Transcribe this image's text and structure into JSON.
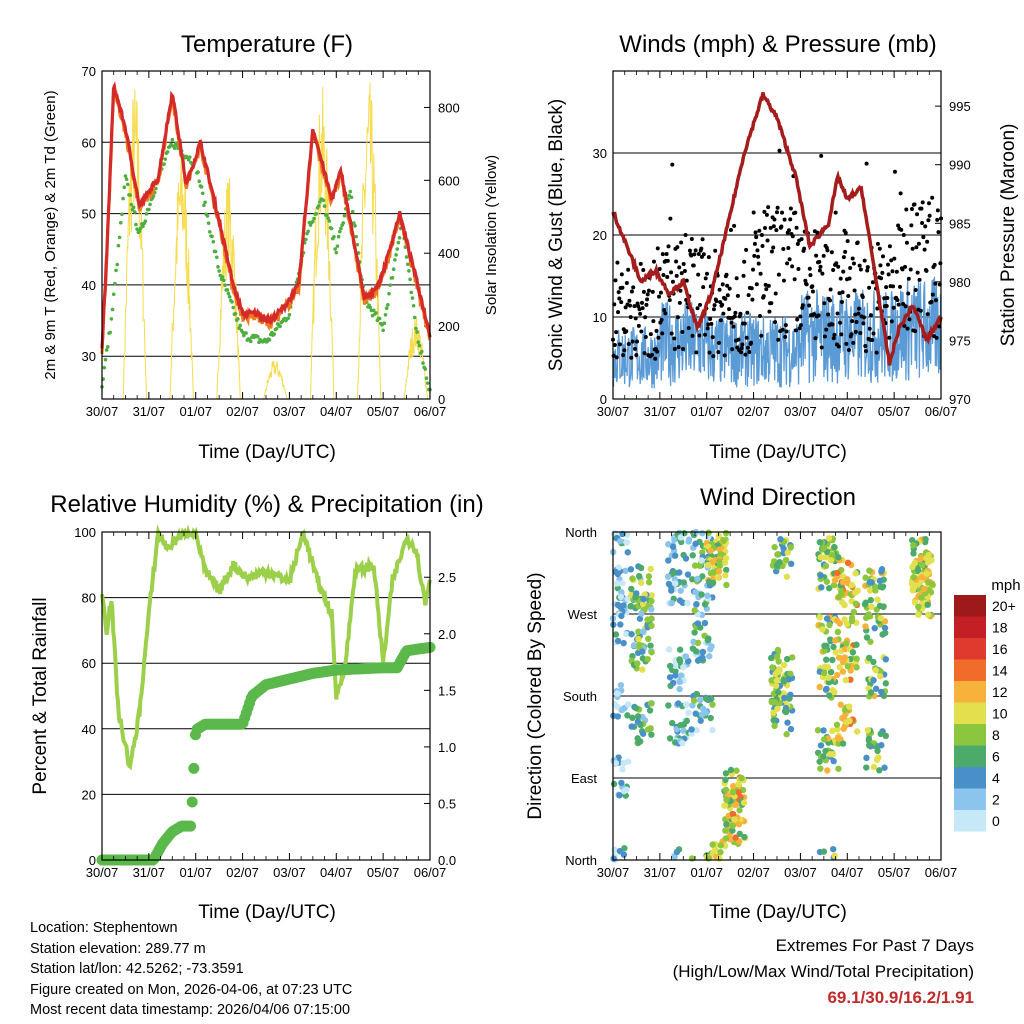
{
  "panels": {
    "temperature": {
      "title": "Temperature (F)",
      "ylabel_left": "2m & 9m T (Red, Orange) & 2m Td (Green)",
      "ylabel_right": "Solar Insolation (Yellow)",
      "xlabel": "Time (Day/UTC)"
    },
    "winds": {
      "title": "Winds (mph) & Pressure (mb)",
      "ylabel_left": "Sonic Wind & Gust (Blue, Black)",
      "ylabel_right": "Station Pressure (Maroon)",
      "xlabel": "Time (Day/UTC)"
    },
    "humidity": {
      "title": "Relative Humidity (%) & Precipitation (in)",
      "ylabel_left": "Percent & Total Rainfall",
      "xlabel": "Time (Day/UTC)"
    },
    "direction": {
      "title": "Wind Direction",
      "ylabel_left": "Direction (Colored By Speed)",
      "xlabel": "Time (Day/UTC)",
      "legend_title": "mph"
    }
  },
  "info": {
    "location": "Location: Stephentown",
    "elevation": "Station elevation: 289.77 m",
    "latlon": "Station lat/lon: 42.5262; -73.3591",
    "created": "Figure created on Mon, 2026-04-06, at 07:23 UTC",
    "latest": "Most recent data timestamp: 2026/04/06 07:15:00"
  },
  "extremes": {
    "heading": "Extremes For Past 7 Days",
    "subheading": "(High/Low/Max Wind/Total Precipitation)",
    "values": "69.1/30.9/16.2/1.91"
  },
  "colors": {
    "temp2m": "#d42a2a",
    "temp9m": "#f07a1e",
    "dewpoint": "#4caf40",
    "solar": "#f7dc4f",
    "wind": "#5b9bd5",
    "gust": "#000000",
    "pressure": "#a51c1c",
    "rh": "#9ccf4a",
    "precip": "#5bb84a"
  },
  "chart_data": [
    {
      "type": "line",
      "id": "temperature",
      "title": "Temperature (F)",
      "xlabel": "Time (Day/UTC)",
      "x_categories": [
        "30/07",
        "31/07",
        "01/07",
        "02/07",
        "03/07",
        "04/07",
        "05/07",
        "06/07"
      ],
      "ylim": [
        24,
        70
      ],
      "y_ticks": [
        30,
        40,
        50,
        60,
        70
      ],
      "y2lim": [
        0,
        900
      ],
      "y2_ticks": [
        0,
        200,
        400,
        600,
        800
      ],
      "ylabel": "2m & 9m T (Red, Orange) & 2m Td (Green)",
      "y2label": "Solar Insolation (Yellow)",
      "series": [
        {
          "name": "2m T",
          "x": [
            0,
            0.1,
            0.25,
            0.5,
            0.8,
            1.2,
            1.5,
            1.8,
            2.1,
            2.5,
            2.8,
            3.0,
            3.3,
            3.6,
            3.9,
            4.2,
            4.5,
            4.9,
            5.1,
            5.6,
            5.9,
            6.1,
            6.35,
            6.7,
            7.0
          ],
          "y": [
            31,
            44,
            68,
            62,
            51,
            55,
            67,
            54,
            60,
            49,
            40,
            36,
            36,
            35,
            37,
            40,
            62,
            52,
            56,
            38,
            40,
            44,
            50,
            41,
            33
          ]
        },
        {
          "name": "2m Td",
          "x": [
            0,
            0.2,
            0.5,
            0.8,
            1.2,
            1.5,
            2.0,
            2.5,
            3.0,
            3.5,
            4.0,
            4.4,
            4.7,
            5.0,
            5.3,
            5.6,
            6.0,
            6.4,
            6.7,
            7.0
          ],
          "y": [
            26,
            35,
            55,
            47,
            55,
            60,
            57,
            42,
            33,
            32,
            36,
            48,
            52,
            45,
            53,
            38,
            34,
            49,
            34,
            25
          ]
        },
        {
          "name": "Solar Insolation",
          "axis": "y2",
          "days": [
            0,
            1,
            2,
            3,
            4,
            5,
            6
          ],
          "daily_peak": [
            880,
            700,
            620,
            110,
            860,
            880,
            230
          ]
        }
      ]
    },
    {
      "type": "scatter",
      "id": "winds",
      "title": "Winds (mph) & Pressure (mb)",
      "xlabel": "Time (Day/UTC)",
      "x_categories": [
        "30/07",
        "31/07",
        "01/07",
        "02/07",
        "03/07",
        "04/07",
        "05/07",
        "06/07"
      ],
      "ylim": [
        0,
        40
      ],
      "y_ticks": [
        0,
        10,
        20,
        30
      ],
      "y2lim": [
        970,
        998
      ],
      "y2_ticks": [
        970,
        975,
        980,
        985,
        990,
        995
      ],
      "ylabel": "Sonic Wind & Gust (Blue, Black)",
      "y2label": "Station Pressure (Maroon)",
      "series": [
        {
          "name": "Pressure",
          "axis": "y2",
          "x": [
            0,
            0.3,
            0.6,
            0.9,
            1.2,
            1.5,
            1.8,
            2.1,
            2.4,
            2.8,
            3.2,
            3.5,
            3.9,
            4.2,
            4.6,
            4.8,
            5.0,
            5.3,
            5.5,
            5.7,
            5.9,
            6.1,
            6.4,
            6.7,
            7.0
          ],
          "y": [
            986,
            983,
            980,
            981,
            979,
            980,
            976,
            979,
            984,
            991,
            996,
            994,
            989,
            983,
            985,
            989,
            987,
            988,
            983,
            978,
            973,
            976,
            978,
            975,
            977
          ]
        },
        {
          "name": "Sonic Wind",
          "daily_mean": [
            6,
            8,
            7,
            7,
            9,
            9,
            10
          ]
        },
        {
          "name": "Gust",
          "daily_mean": [
            12,
            14,
            13,
            17,
            15,
            14,
            18
          ]
        }
      ]
    },
    {
      "type": "line",
      "id": "humidity",
      "title": "Relative Humidity (%) & Precipitation (in)",
      "xlabel": "Time (Day/UTC)",
      "x_categories": [
        "30/07",
        "31/07",
        "01/07",
        "02/07",
        "03/07",
        "04/07",
        "05/07",
        "06/07"
      ],
      "ylim": [
        0,
        100
      ],
      "y_ticks": [
        0,
        20,
        40,
        60,
        80,
        100
      ],
      "y2lim": [
        0,
        2.9
      ],
      "y2_ticks": [
        "0.0",
        "0.5",
        "1.0",
        "1.5",
        "2.0",
        "2.5"
      ],
      "ylabel": "Percent & Total Rainfall",
      "series": [
        {
          "name": "RH",
          "x": [
            0,
            0.1,
            0.2,
            0.35,
            0.6,
            0.8,
            1.0,
            1.2,
            1.4,
            1.6,
            1.8,
            2.0,
            2.2,
            2.5,
            2.8,
            3.1,
            3.5,
            4.0,
            4.3,
            4.6,
            4.9,
            5.0,
            5.2,
            5.4,
            5.8,
            6.0,
            6.2,
            6.5,
            6.7,
            6.9,
            7.0
          ],
          "y": [
            82,
            70,
            80,
            45,
            28,
            45,
            75,
            100,
            95,
            98,
            100,
            100,
            88,
            82,
            90,
            86,
            88,
            85,
            100,
            85,
            75,
            50,
            60,
            88,
            90,
            60,
            85,
            98,
            95,
            78,
            86
          ]
        },
        {
          "name": "Total Precipitation",
          "x": [
            0,
            1.1,
            1.3,
            1.5,
            1.7,
            1.9,
            2.0,
            2.2,
            2.5,
            3.0,
            3.2,
            3.5,
            4.0,
            4.5,
            5.0,
            6.0,
            6.3,
            6.5,
            7.0
          ],
          "y": [
            0,
            0,
            0.15,
            0.25,
            0.3,
            0.3,
            1.15,
            1.2,
            1.2,
            1.2,
            1.45,
            1.55,
            1.6,
            1.65,
            1.68,
            1.7,
            1.7,
            1.85,
            1.88
          ],
          "axis": "y2"
        }
      ]
    },
    {
      "type": "scatter",
      "id": "direction",
      "title": "Wind Direction",
      "xlabel": "Time (Day/UTC)",
      "x_categories": [
        "30/07",
        "31/07",
        "01/07",
        "02/07",
        "03/07",
        "04/07",
        "05/07",
        "06/07"
      ],
      "y_categories": [
        "North",
        "East",
        "South",
        "West",
        "North"
      ],
      "ylabel": "Direction (Colored By Speed)",
      "colorbar": {
        "label": "mph",
        "ticks": [
          "0",
          "2",
          "4",
          "6",
          "8",
          "10",
          "12",
          "14",
          "16",
          "18",
          "20+"
        ],
        "colors": [
          "#c6e8f7",
          "#8bc4ec",
          "#4a90c8",
          "#4cab6b",
          "#8cc63f",
          "#e3e04e",
          "#f7b23c",
          "#f16b2b",
          "#e03a2e",
          "#c41f25",
          "#9e1a1a"
        ]
      },
      "clusters": [
        {
          "day": 0.1,
          "direction": [
            0,
            90,
            180,
            260,
            300
          ],
          "speed": 3
        },
        {
          "day": 0.6,
          "direction": [
            150,
            230,
            270,
            300
          ],
          "speed": 7
        },
        {
          "day": 1.4,
          "direction": [
            150,
            210,
            300,
            350
          ],
          "speed": 4
        },
        {
          "day": 1.9,
          "direction": [
            160,
            240,
            290,
            340
          ],
          "speed": 5
        },
        {
          "day": 2.2,
          "direction": [
            0,
            330,
            320
          ],
          "speed": 10
        },
        {
          "day": 2.6,
          "direction": [
            40,
            60,
            80
          ],
          "speed": 11
        },
        {
          "day": 3.6,
          "direction": [
            160,
            190,
            210,
            330
          ],
          "speed": 8
        },
        {
          "day": 4.6,
          "direction": [
            120,
            200,
            250,
            320,
            350
          ],
          "speed": 9
        },
        {
          "day": 5.0,
          "direction": [
            150,
            220,
            280,
            310
          ],
          "speed": 11
        },
        {
          "day": 5.6,
          "direction": [
            120,
            200,
            260,
            300
          ],
          "speed": 9
        },
        {
          "day": 6.6,
          "direction": [
            290,
            300,
            320,
            330
          ],
          "speed": 10
        }
      ]
    }
  ]
}
